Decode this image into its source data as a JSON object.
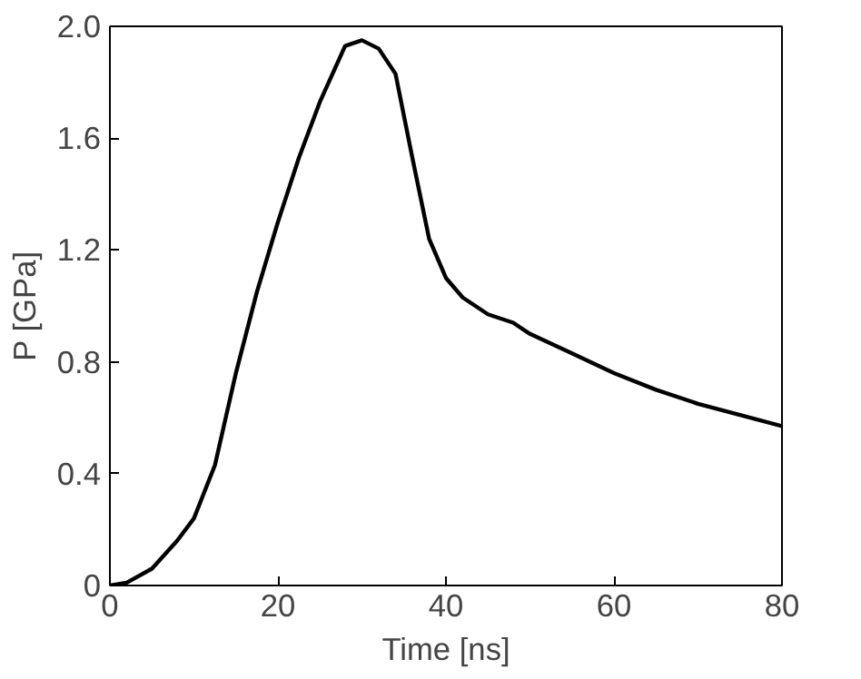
{
  "chart_data": {
    "type": "line",
    "xlabel": "Time [ns]",
    "ylabel": "P [GPa]",
    "x": [
      0,
      2,
      5,
      8,
      10,
      12.5,
      15,
      17.5,
      20,
      22.5,
      25,
      28,
      30,
      32,
      34,
      36,
      38,
      40,
      42,
      45,
      48,
      50,
      55,
      60,
      65,
      70,
      75,
      80
    ],
    "series": [
      {
        "color": "#000000",
        "values": [
          0,
          0.01,
          0.06,
          0.16,
          0.24,
          0.43,
          0.76,
          1.05,
          1.3,
          1.53,
          1.73,
          1.93,
          1.95,
          1.92,
          1.83,
          1.53,
          1.24,
          1.1,
          1.03,
          0.97,
          0.94,
          0.9,
          0.83,
          0.76,
          0.7,
          0.65,
          0.61,
          0.57
        ]
      }
    ],
    "xlim": [
      0,
      80
    ],
    "ylim": [
      0,
      2.0
    ],
    "xticks": [
      0,
      20,
      40,
      60,
      80
    ],
    "yticks": [
      0,
      {
        "value": 0.4,
        "label": "0.4"
      },
      {
        "value": 0.8,
        "label": "0.8"
      },
      {
        "value": 1.2,
        "label": "1.2"
      },
      {
        "value": 1.6,
        "label": "1.6"
      },
      {
        "value": 2,
        "label": "2.0"
      }
    ],
    "grid": false,
    "marker": "none",
    "line_style": "solid"
  }
}
